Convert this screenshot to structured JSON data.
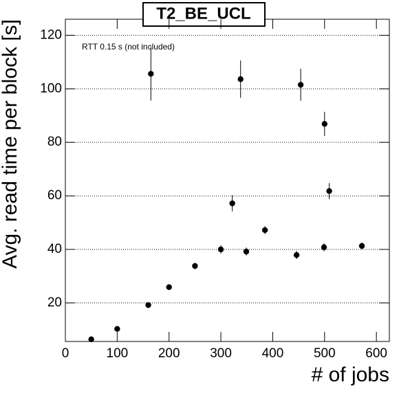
{
  "chart_data": {
    "type": "scatter",
    "title": "T2_BE_UCL",
    "annotation": "RTT 0.15 s (not included)",
    "x_label": "# of jobs",
    "y_label": "Avg. read time per block [s]",
    "xlim": [
      0,
      625
    ],
    "ylim": [
      5.6,
      126
    ],
    "xticks": [
      0,
      100,
      200,
      300,
      400,
      500,
      600
    ],
    "yticks": [
      20,
      40,
      60,
      80,
      100,
      120
    ],
    "grid": true,
    "color": "#000000",
    "x": [
      50,
      100,
      160,
      165,
      200,
      250,
      300,
      322,
      338,
      349,
      385,
      446,
      454,
      499,
      500,
      509,
      572
    ],
    "values": [
      6.4,
      10.3,
      19.2,
      105.6,
      25.9,
      33.8,
      40,
      57.2,
      103.6,
      39.2,
      47.2,
      37.9,
      101.5,
      40.8,
      86.9,
      61.8,
      41.3
    ],
    "errors": [
      0.5,
      0.8,
      0.8,
      10,
      1,
      1.2,
      1.5,
      3,
      7,
      1.5,
      1.5,
      1.5,
      6,
      1.5,
      4.5,
      3,
      1.3
    ]
  }
}
